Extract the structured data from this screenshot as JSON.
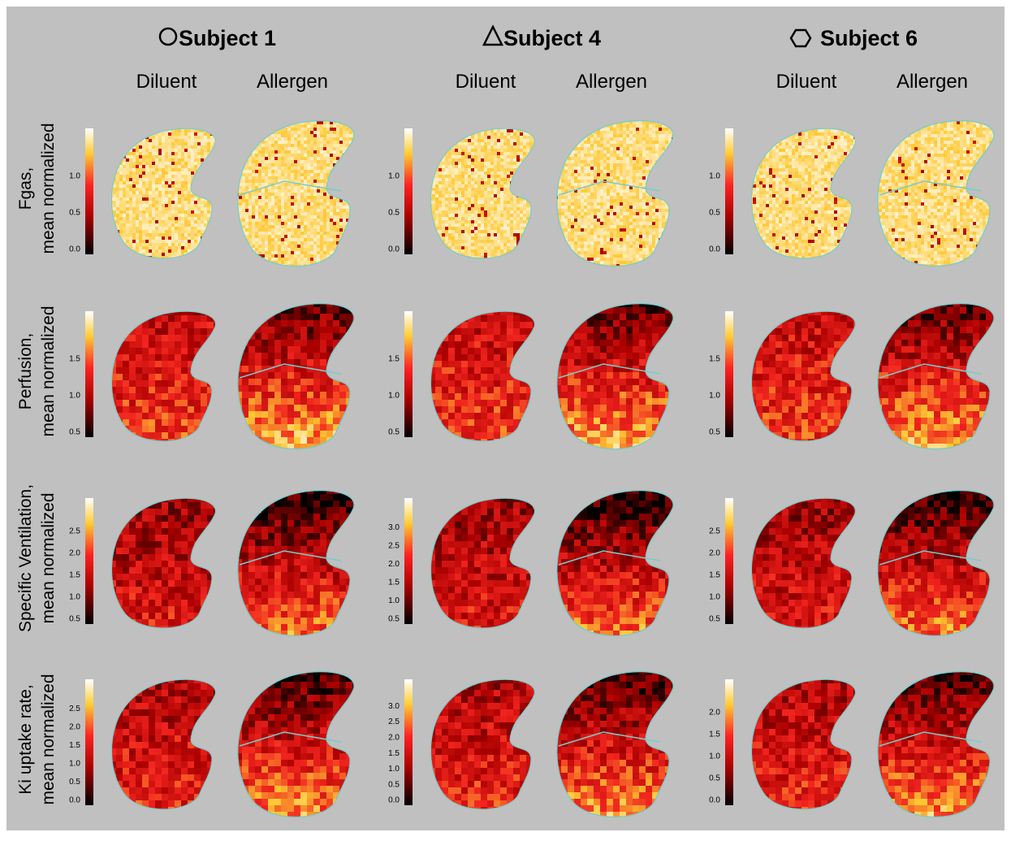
{
  "subjects": [
    {
      "label": "Subject 1",
      "conditions": [
        "Diluent",
        "Allergen"
      ]
    },
    {
      "label": "Subject 4",
      "conditions": [
        "Diluent",
        "Allergen"
      ]
    },
    {
      "label": "Subject 6",
      "conditions": [
        "Diluent",
        "Allergen"
      ]
    }
  ],
  "rows": [
    {
      "label": [
        "Fgas,",
        "mean normalized"
      ],
      "colorbars": [
        [
          "0.0",
          "0.5",
          "1.0"
        ],
        [
          "0.0",
          "0.5",
          "1.0"
        ],
        [
          "0.0",
          "0.5",
          "1.0"
        ]
      ]
    },
    {
      "label": [
        "Perfusion,",
        "mean normalized"
      ],
      "colorbars": [
        [
          "0.5",
          "1.0",
          "1.5"
        ],
        [
          "0.5",
          "1.0",
          "1.5"
        ],
        [
          "0.5",
          "1.0",
          "1.5"
        ]
      ]
    },
    {
      "label": [
        "Specific Ventilation,",
        "mean normalized"
      ],
      "colorbars": [
        [
          "0.5",
          "1.0",
          "1.5",
          "2.0",
          "2.5"
        ],
        [
          "0.5",
          "1.0",
          "1.5",
          "2.0",
          "2.5",
          "3.0"
        ],
        [
          "0.5",
          "1.0",
          "1.5",
          "2.0",
          "2.5"
        ]
      ]
    },
    {
      "label": [
        "Ki uptake rate,",
        "mean normalized"
      ],
      "colorbars": [
        [
          "0.0",
          "0.5",
          "1.0",
          "1.5",
          "2.0",
          "2.5"
        ],
        [
          "0.0",
          "0.5",
          "1.0",
          "1.5",
          "2.0",
          "2.5",
          "3.0"
        ],
        [
          "0.0",
          "0.5",
          "1.0",
          "1.5",
          "2.0"
        ]
      ]
    }
  ]
}
